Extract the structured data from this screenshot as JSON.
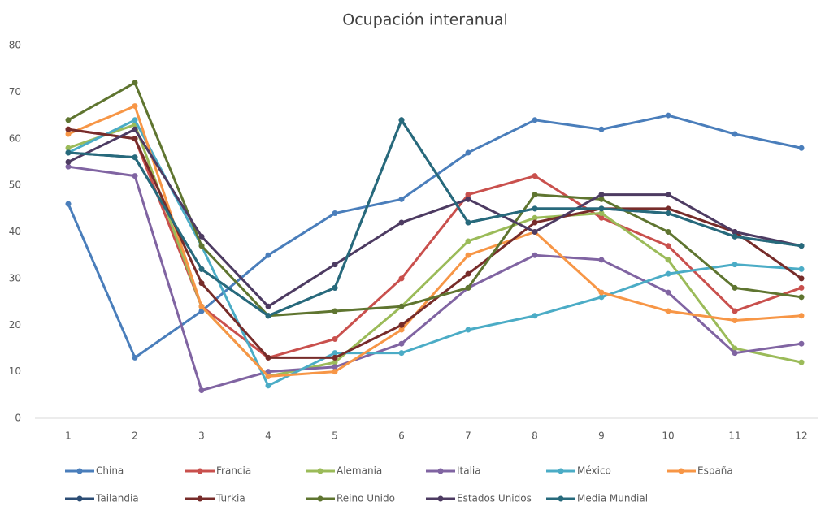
{
  "chart_data": {
    "type": "line",
    "title": "Ocupación interanual",
    "categories": [
      "1",
      "2",
      "3",
      "4",
      "5",
      "6",
      "7",
      "8",
      "9",
      "10",
      "11",
      "12"
    ],
    "series": [
      {
        "name": "China",
        "color": "#4a7ebb",
        "values": [
          46,
          13,
          23,
          35,
          44,
          47,
          57,
          64,
          62,
          65,
          61,
          58
        ]
      },
      {
        "name": "Francia",
        "color": "#c9504d",
        "values": [
          62,
          60,
          24,
          13,
          17,
          30,
          48,
          52,
          43,
          37,
          23,
          28
        ]
      },
      {
        "name": "Alemania",
        "color": "#9bbb59",
        "values": [
          58,
          63,
          24,
          9,
          12,
          24,
          38,
          43,
          44,
          34,
          15,
          12
        ]
      },
      {
        "name": "Italia",
        "color": "#8064a2",
        "values": [
          54,
          52,
          6,
          10,
          11,
          16,
          28,
          35,
          34,
          27,
          14,
          16
        ]
      },
      {
        "name": "México",
        "color": "#4bacc6",
        "values": [
          57,
          64,
          37,
          7,
          14,
          14,
          19,
          22,
          26,
          31,
          33,
          32
        ]
      },
      {
        "name": "España",
        "color": "#f79646",
        "values": [
          61,
          67,
          24,
          9,
          10,
          19,
          35,
          40,
          27,
          23,
          21,
          22
        ]
      },
      {
        "name": "Tailandia",
        "color": "#2c4d75",
        "values": [
          57,
          56,
          32,
          22,
          28,
          64,
          42,
          45,
          45,
          44,
          39,
          37
        ]
      },
      {
        "name": "Turkia",
        "color": "#772c2a",
        "values": [
          62,
          60,
          29,
          13,
          13,
          20,
          31,
          42,
          45,
          45,
          40,
          30
        ]
      },
      {
        "name": "Reino Unido",
        "color": "#5f7530",
        "values": [
          64,
          72,
          37,
          22,
          23,
          24,
          28,
          48,
          47,
          40,
          28,
          26
        ]
      },
      {
        "name": "Estados Unidos",
        "color": "#4d3b62",
        "values": [
          55,
          62,
          39,
          24,
          33,
          42,
          47,
          40,
          48,
          48,
          40,
          37
        ]
      },
      {
        "name": "Media Mundial",
        "color": "#276a7c",
        "values": [
          57,
          56,
          32,
          22,
          28,
          64,
          42,
          45,
          45,
          44,
          39,
          37
        ]
      }
    ],
    "ylim": [
      0,
      80
    ],
    "yticks": [
      0,
      10,
      20,
      30,
      40,
      50,
      60,
      70,
      80
    ],
    "grid": false
  }
}
